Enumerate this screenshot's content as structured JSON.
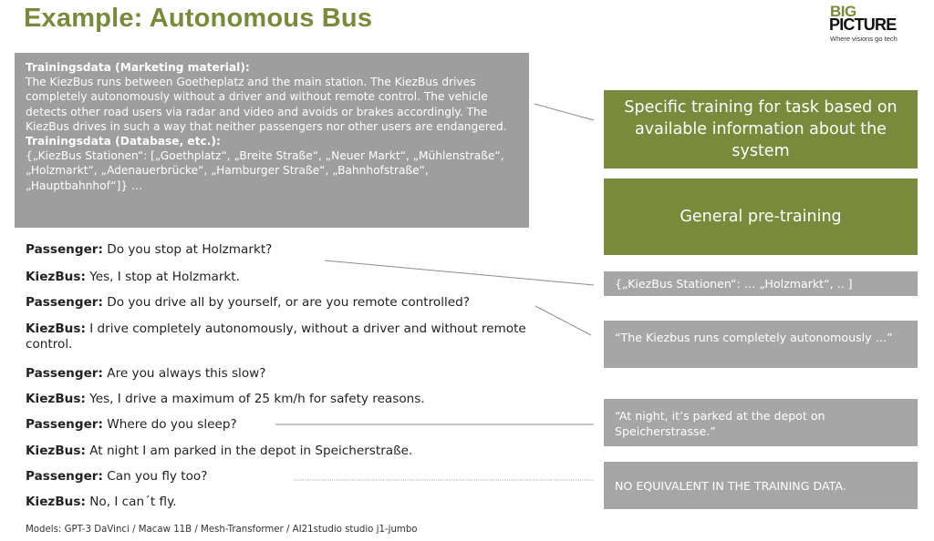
{
  "slide": {
    "title": "Example: Autonomous Bus"
  },
  "logo": {
    "line1": "BIG",
    "line2": "PICTURE",
    "tagline": "Where visions go tech"
  },
  "training_box": {
    "heading1": "Trainingsdata (Marketing material):",
    "marketing_text": "The KiezBus runs between Goetheplatz and the main station. The KiezBus drives completely autonomously without a driver and without remote control. The vehicle detects other road users via radar and video and avoids or brakes accordingly. The KiezBus drives in such a way that neither passengers nor other users are endangered.",
    "heading2": "Trainingsdata (Database, etc.):",
    "database_text": "{„KiezBus Stationen“: [„Goethplatz“, „Breite Straße“, „Neuer Markt“, „Mühlenstraße“, „Holzmarkt“, „Adenauerbrücke“, „Hamburger Straße“, „Bahnhofstraße“, „Hauptbahnhof“]} …"
  },
  "dialog": [
    {
      "speaker": "Passenger:",
      "text": " Do you stop at Holzmarkt?"
    },
    {
      "speaker": "KiezBus:",
      "text": " Yes, I stop at Holzmarkt."
    },
    {
      "speaker": "Passenger:",
      "text": " Do you drive all by yourself, or are you remote controlled?"
    },
    {
      "speaker": "KiezBus:",
      "text": " I drive completely autonomously, without a driver and without remote control."
    },
    {
      "speaker": "Passenger:",
      "text": " Are you always this slow?"
    },
    {
      "speaker": "KiezBus:",
      "text": " Yes, I drive a maximum of 25 km/h for safety reasons."
    },
    {
      "speaker": "Passenger:",
      "text": " Where do you sleep?"
    },
    {
      "speaker": "KiezBus:",
      "text": " At night I am parked in the depot in Speicherstraße."
    },
    {
      "speaker": "Passenger:",
      "text": " Can you fly too?"
    },
    {
      "speaker": "KiezBus:",
      "text": " No, I can´t fly."
    }
  ],
  "footer": "Models: GPT-3 DaVinci / Macaw 11B / Mesh-Transformer / AI21studio studio j1-jumbo",
  "right_panel": {
    "specific_training": "Specific training for task based on available information about the system",
    "general_pretraining": "General pre-training",
    "source1": "{„KiezBus Stationen“: … „Holzmarkt“, .. ]",
    "source2": "“The Kiezbus runs completely autonomously …”",
    "source3": "“At night, it’s parked at the depot on Speicherstrasse.”",
    "source4": "NO EQUIVALENT IN THE TRAINING DATA."
  },
  "colors": {
    "accent_green": "#7a8a3c",
    "box_gray": "#9e9e9e",
    "source_gray": "#a6a6a6"
  }
}
